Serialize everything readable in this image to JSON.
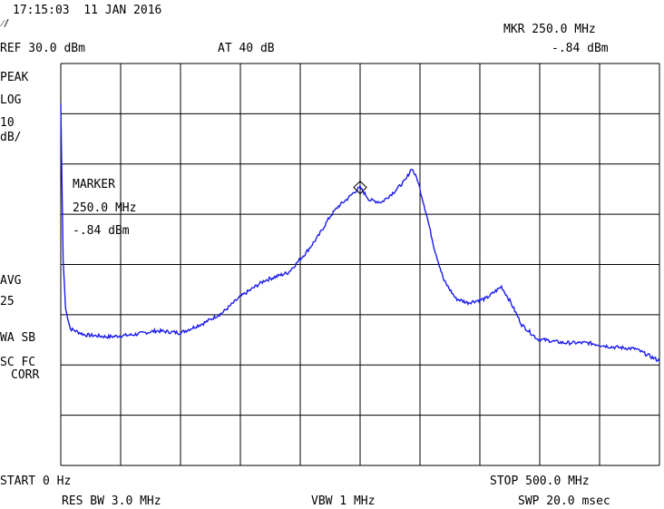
{
  "header": {
    "timestamp": "17:15:03  11 JAN 2016",
    "symbol": "⁄/",
    "ref_level": "REF 30.0 dBm",
    "attenuation": "AT 40 dB",
    "marker_readout_label": "MKR 250.0 MHz",
    "marker_readout_value": "-.84 dBm"
  },
  "left_panel": {
    "detector": "PEAK",
    "scale_type": "LOG",
    "scale_value": "10",
    "scale_unit": "dB/",
    "avg_label": "AVG",
    "avg_count": "25",
    "wa_sb": "WA SB",
    "sc_fc": "SC FC",
    "corr": "CORR"
  },
  "marker_box": {
    "title": "MARKER",
    "freq": "250.0 MHz",
    "level": "-.84 dBm"
  },
  "footer": {
    "start": "START 0 Hz",
    "stop": "STOP 500.0 MHz",
    "rbw": "RES BW 3.0 MHz",
    "vbw": "VBW 1 MHz",
    "sweep": "SWP 20.0 msec"
  },
  "colors": {
    "trace": "#1a1aee",
    "grid": "#000000",
    "background": "#ffffff"
  },
  "chart_data": {
    "type": "line",
    "x_unit": "MHz",
    "y_unit": "dBm",
    "xlim": [
      0,
      500
    ],
    "ylim": [
      -70,
      30
    ],
    "grid": true,
    "divisions": {
      "x": 10,
      "y": 8
    },
    "marker": {
      "x": 250,
      "y": -0.84
    },
    "series": [
      {
        "values": [
          [
            0,
            20
          ],
          [
            2,
            -19
          ],
          [
            4,
            -31
          ],
          [
            8,
            -36
          ],
          [
            20,
            -37.5
          ],
          [
            40,
            -38
          ],
          [
            60,
            -37.5
          ],
          [
            80,
            -36.5
          ],
          [
            100,
            -37
          ],
          [
            120,
            -34.5
          ],
          [
            135,
            -32
          ],
          [
            150,
            -28
          ],
          [
            170,
            -24
          ],
          [
            190,
            -22
          ],
          [
            205,
            -17
          ],
          [
            215,
            -13
          ],
          [
            225,
            -8
          ],
          [
            232,
            -5.5
          ],
          [
            240,
            -3.5
          ],
          [
            245,
            -2
          ],
          [
            250,
            -0.84
          ],
          [
            258,
            -4
          ],
          [
            268,
            -4.5
          ],
          [
            278,
            -2
          ],
          [
            288,
            1
          ],
          [
            293,
            4
          ],
          [
            298,
            1
          ],
          [
            305,
            -7
          ],
          [
            312,
            -16
          ],
          [
            320,
            -24
          ],
          [
            330,
            -28.5
          ],
          [
            340,
            -29.5
          ],
          [
            355,
            -28.5
          ],
          [
            368,
            -25.5
          ],
          [
            375,
            -29
          ],
          [
            385,
            -35
          ],
          [
            398,
            -38.5
          ],
          [
            420,
            -39.5
          ],
          [
            440,
            -39.5
          ],
          [
            460,
            -40.5
          ],
          [
            480,
            -41
          ],
          [
            500,
            -44
          ]
        ]
      }
    ]
  }
}
